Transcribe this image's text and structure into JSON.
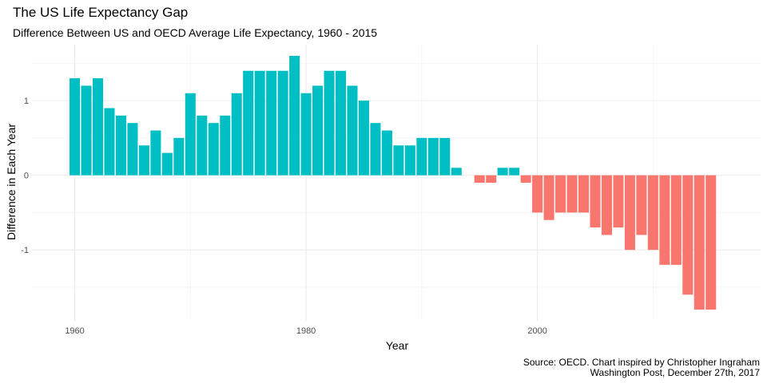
{
  "chart_data": {
    "type": "bar",
    "title": "The US Life Expectancy Gap",
    "subtitle": "Difference Between US and OECD Average Life Expectancy, 1960 - 2015",
    "xlabel": "Year",
    "ylabel": "Difference in Each Year",
    "caption_line1": "Source: OECD. Chart inspired by Christopher Ingraham",
    "caption_line2": "Washington Post, December 27th, 2017",
    "x_ticks": [
      1960,
      1980,
      2000
    ],
    "y_ticks": [
      -1,
      0,
      1
    ],
    "xlim": [
      1956.3,
      2019.3
    ],
    "ylim": [
      -1.95,
      1.75
    ],
    "grid": true,
    "positive_color": "#00BFC4",
    "negative_color": "#F8766D",
    "x": [
      1960,
      1961,
      1962,
      1963,
      1964,
      1965,
      1966,
      1967,
      1968,
      1969,
      1970,
      1971,
      1972,
      1973,
      1974,
      1975,
      1976,
      1977,
      1978,
      1979,
      1980,
      1981,
      1982,
      1983,
      1984,
      1985,
      1986,
      1987,
      1988,
      1989,
      1990,
      1991,
      1992,
      1993,
      1994,
      1995,
      1996,
      1997,
      1998,
      1999,
      2000,
      2001,
      2002,
      2003,
      2004,
      2005,
      2006,
      2007,
      2008,
      2009,
      2010,
      2011,
      2012,
      2013,
      2014,
      2015
    ],
    "values": [
      1.3,
      1.2,
      1.3,
      0.9,
      0.8,
      0.7,
      0.4,
      0.6,
      0.3,
      0.5,
      1.1,
      0.8,
      0.7,
      0.8,
      1.1,
      1.4,
      1.4,
      1.4,
      1.4,
      1.6,
      1.1,
      1.2,
      1.4,
      1.4,
      1.2,
      1.0,
      0.7,
      0.6,
      0.4,
      0.4,
      0.5,
      0.5,
      0.5,
      0.1,
      0.0,
      -0.1,
      -0.1,
      0.1,
      0.1,
      -0.1,
      -0.5,
      -0.6,
      -0.5,
      -0.5,
      -0.5,
      -0.7,
      -0.8,
      -0.7,
      -1.0,
      -0.8,
      -1.0,
      -1.2,
      -1.2,
      -1.6,
      -1.8,
      -1.8
    ]
  }
}
